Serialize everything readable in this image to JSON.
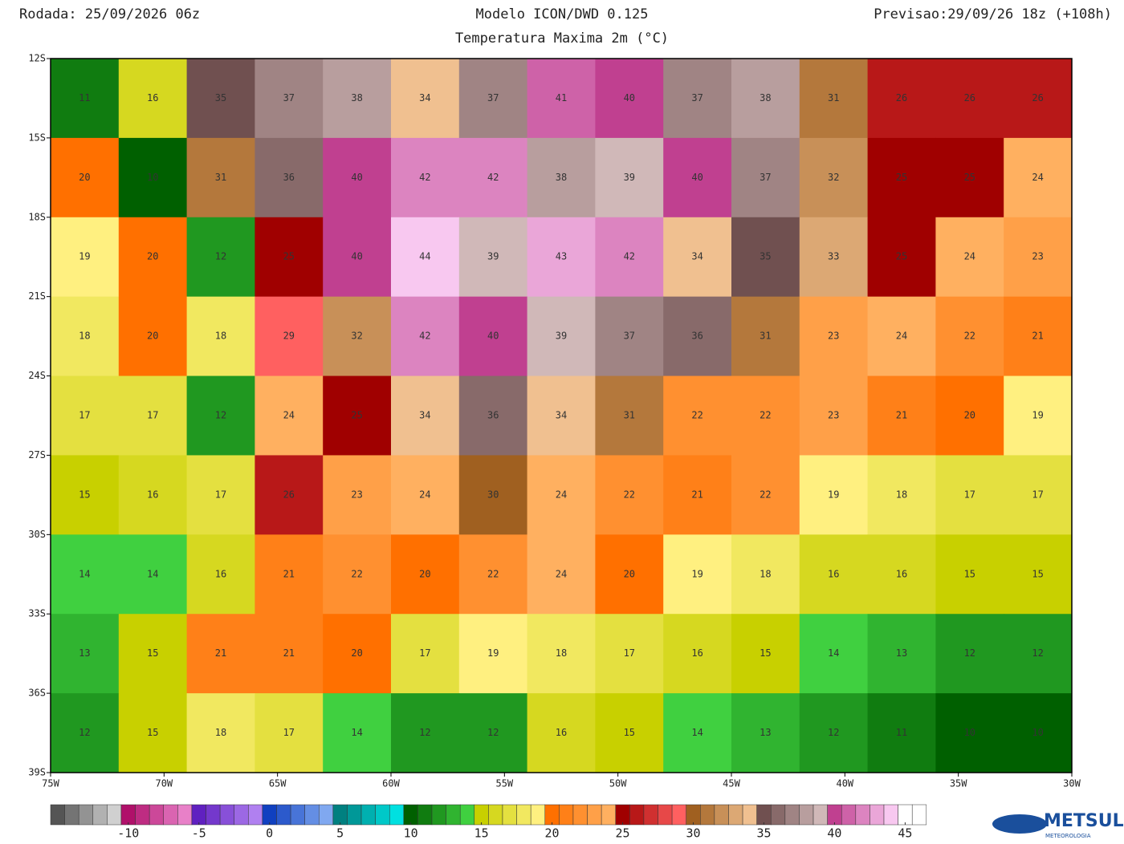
{
  "header": {
    "left": "Rodada: 25/09/2026 06z",
    "center": "Modelo ICON/DWD 0.125",
    "right": "Previsao:29/09/26 18z (+108h)",
    "subtitle": "Temperatura Maxima 2m (°C)"
  },
  "map": {
    "xlim": [
      -75,
      -30
    ],
    "ylim": [
      -39,
      -12
    ],
    "xticks": [
      {
        "value": -75,
        "label": "75W"
      },
      {
        "value": -70,
        "label": "70W"
      },
      {
        "value": -65,
        "label": "65W"
      },
      {
        "value": -60,
        "label": "60W"
      },
      {
        "value": -55,
        "label": "55W"
      },
      {
        "value": -50,
        "label": "50W"
      },
      {
        "value": -45,
        "label": "45W"
      },
      {
        "value": -40,
        "label": "40W"
      },
      {
        "value": -35,
        "label": "35W"
      },
      {
        "value": -30,
        "label": "30W"
      }
    ],
    "yticks": [
      {
        "value": -12,
        "label": "12S"
      },
      {
        "value": -15,
        "label": "15S"
      },
      {
        "value": -18,
        "label": "18S"
      },
      {
        "value": -21,
        "label": "21S"
      },
      {
        "value": -24,
        "label": "24S"
      },
      {
        "value": -27,
        "label": "27S"
      },
      {
        "value": -30,
        "label": "30S"
      },
      {
        "value": -33,
        "label": "33S"
      },
      {
        "value": -36,
        "label": "36S"
      },
      {
        "value": -39,
        "label": "39S"
      }
    ],
    "lons": [
      -73.5,
      -70.5,
      -67.5,
      -64.5,
      -61.5,
      -58.5,
      -55.5,
      -52.5,
      -49.5,
      -46.5,
      -43.5,
      -40.5,
      -37.5,
      -34.5,
      -31.5
    ],
    "lats": [
      -13.5,
      -16.5,
      -19.5,
      -22.5,
      -25.5,
      -28.5,
      -31.5,
      -34.5,
      -37.5
    ],
    "values": [
      [
        11,
        16,
        35,
        37,
        38,
        34,
        37,
        41,
        40,
        37,
        38,
        31,
        26,
        26,
        26
      ],
      [
        20,
        10,
        31,
        36,
        40,
        42,
        42,
        38,
        39,
        40,
        37,
        32,
        25,
        25,
        24
      ],
      [
        19,
        20,
        12,
        25,
        40,
        44,
        39,
        43,
        42,
        34,
        35,
        33,
        25,
        24,
        23
      ],
      [
        18,
        20,
        18,
        29,
        32,
        42,
        40,
        39,
        37,
        36,
        31,
        23,
        24,
        22,
        21
      ],
      [
        17,
        17,
        12,
        24,
        25,
        34,
        36,
        34,
        31,
        22,
        22,
        23,
        21,
        20,
        19
      ],
      [
        15,
        16,
        17,
        26,
        23,
        24,
        30,
        24,
        22,
        21,
        22,
        19,
        18,
        17,
        17
      ],
      [
        14,
        14,
        16,
        21,
        22,
        20,
        22,
        24,
        20,
        19,
        18,
        16,
        16,
        15,
        15
      ],
      [
        13,
        15,
        21,
        21,
        20,
        17,
        19,
        18,
        17,
        16,
        15,
        14,
        13,
        12,
        12
      ],
      [
        12,
        15,
        18,
        17,
        14,
        12,
        12,
        16,
        15,
        14,
        13,
        12,
        11,
        10,
        10
      ]
    ]
  },
  "colorbar": {
    "lim": [
      -15.5,
      46
    ],
    "ticks": [
      -10,
      -5,
      0,
      5,
      10,
      15,
      20,
      25,
      30,
      35,
      40,
      45
    ],
    "stops": [
      [
        -15,
        "#555555"
      ],
      [
        -11,
        "#d0d0d0"
      ],
      [
        -10,
        "#b0106a"
      ],
      [
        -6,
        "#e880c8"
      ],
      [
        -5,
        "#6020c0"
      ],
      [
        -1,
        "#b080f0"
      ],
      [
        0,
        "#1040c0"
      ],
      [
        4,
        "#80a8f0"
      ],
      [
        5,
        "#008080"
      ],
      [
        9,
        "#00e0e0"
      ],
      [
        10,
        "#006000"
      ],
      [
        14,
        "#40d040"
      ],
      [
        15,
        "#c8d000"
      ],
      [
        19,
        "#fff080"
      ],
      [
        20,
        "#ff7000"
      ],
      [
        24,
        "#ffb060"
      ],
      [
        25,
        "#a00000"
      ],
      [
        29,
        "#ff6060"
      ],
      [
        30,
        "#a06020"
      ],
      [
        34,
        "#f0c090"
      ],
      [
        35,
        "#705050"
      ],
      [
        39,
        "#d0b8b8"
      ],
      [
        40,
        "#c04090"
      ],
      [
        44,
        "#f8c8f0"
      ],
      [
        45,
        "#ffffff"
      ]
    ]
  },
  "logo": {
    "name": "METSUL",
    "tagline": "METEOROLOGIA"
  }
}
